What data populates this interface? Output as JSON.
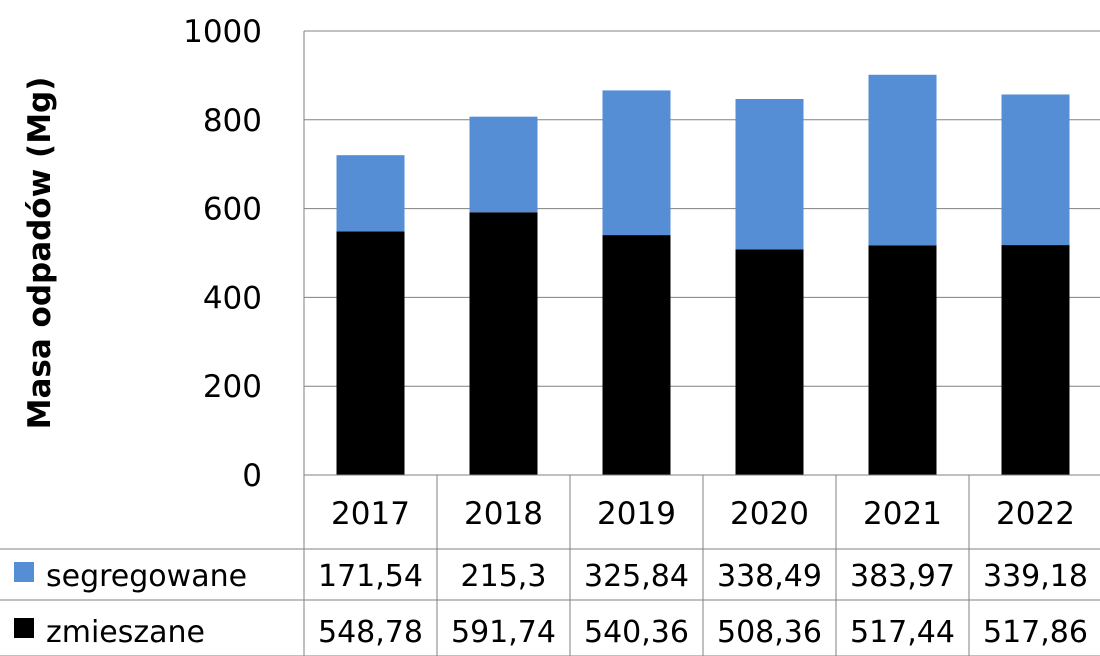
{
  "chart_data": {
    "type": "bar",
    "stacked": true,
    "title": "",
    "xlabel": "",
    "ylabel": "Masa odpadów (Mg)",
    "ylim": [
      0,
      1000
    ],
    "yticks": [
      "0",
      "200",
      "400",
      "600",
      "800",
      "1000"
    ],
    "grid": true,
    "legend": "data-table",
    "categories": [
      "2017",
      "2018",
      "2019",
      "2020",
      "2021",
      "2022"
    ],
    "series": [
      {
        "name": "zmieszane",
        "color": "#000000",
        "values": [
          548.78,
          591.74,
          540.36,
          508.36,
          517.44,
          517.86
        ],
        "labels": [
          "548,78",
          "591,74",
          "540,36",
          "508,36",
          "517,44",
          "517,86"
        ]
      },
      {
        "name": "segregowane",
        "color": "#558ED5",
        "values": [
          171.54,
          215.3,
          325.84,
          338.49,
          383.97,
          339.18
        ],
        "labels": [
          "171,54",
          "215,3",
          "325,84",
          "338,49",
          "383,97",
          "339,18"
        ]
      }
    ]
  }
}
